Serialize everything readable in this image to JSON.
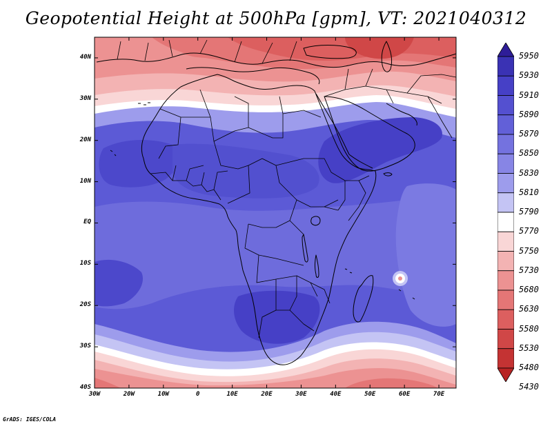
{
  "title": "Geopotential Height at 500hPa [gpm], VT: 2021040312",
  "credit": "GrADS: IGES/COLA",
  "map": {
    "lon_range": [
      -30,
      75
    ],
    "lat_range": [
      -40,
      45
    ],
    "lat_ticks": [
      "40N",
      "30N",
      "20N",
      "10N",
      "EQ",
      "10S",
      "20S",
      "30S",
      "40S"
    ],
    "lon_ticks": [
      "30W",
      "20W",
      "10W",
      "0",
      "10E",
      "20E",
      "30E",
      "40E",
      "50E",
      "60E",
      "70E"
    ],
    "coastlines": true
  },
  "legend": {
    "levels": [
      "5950",
      "5930",
      "5910",
      "5890",
      "5870",
      "5850",
      "5830",
      "5810",
      "5790",
      "5770",
      "5750",
      "5730",
      "5680",
      "5630",
      "5580",
      "5530",
      "5480",
      "5430"
    ],
    "colors": [
      "#2e1d98",
      "#3a32b4",
      "#4640c6",
      "#5450d0",
      "#6260d8",
      "#7472df",
      "#8785e5",
      "#9d9cec",
      "#c4c4f4",
      "#ffffff",
      "#f9d6d6",
      "#f3b3b3",
      "#ec9292",
      "#e47676",
      "#dc5f5f",
      "#d04747",
      "#c43333",
      "#b82424"
    ]
  }
}
